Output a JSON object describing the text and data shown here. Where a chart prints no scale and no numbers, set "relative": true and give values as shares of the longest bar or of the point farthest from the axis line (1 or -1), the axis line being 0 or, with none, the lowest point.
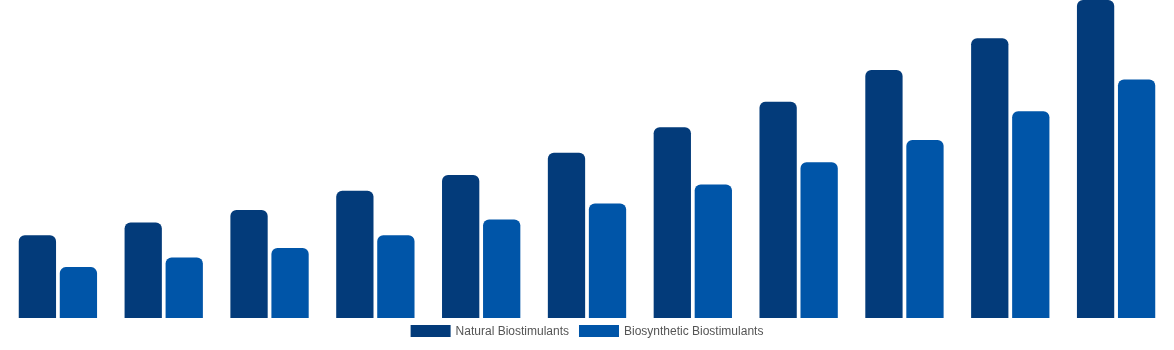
{
  "chart_data": {
    "type": "bar",
    "relative": true,
    "categories": [
      null,
      null,
      null,
      null,
      null,
      null,
      null,
      null,
      null,
      null,
      null
    ],
    "series": [
      {
        "name": "Natural Biostimulants",
        "color": "#033b7a",
        "values": [
          0.26,
          0.3,
          0.34,
          0.4,
          0.45,
          0.52,
          0.6,
          0.68,
          0.78,
          0.88,
          1
        ]
      },
      {
        "name": "Biosynthetic Biostimulants",
        "color": "#0055a8",
        "values": [
          0.16,
          0.19,
          0.22,
          0.26,
          0.31,
          0.36,
          0.42,
          0.49,
          0.56,
          0.65,
          0.75
        ]
      }
    ],
    "legend": "bottom"
  }
}
